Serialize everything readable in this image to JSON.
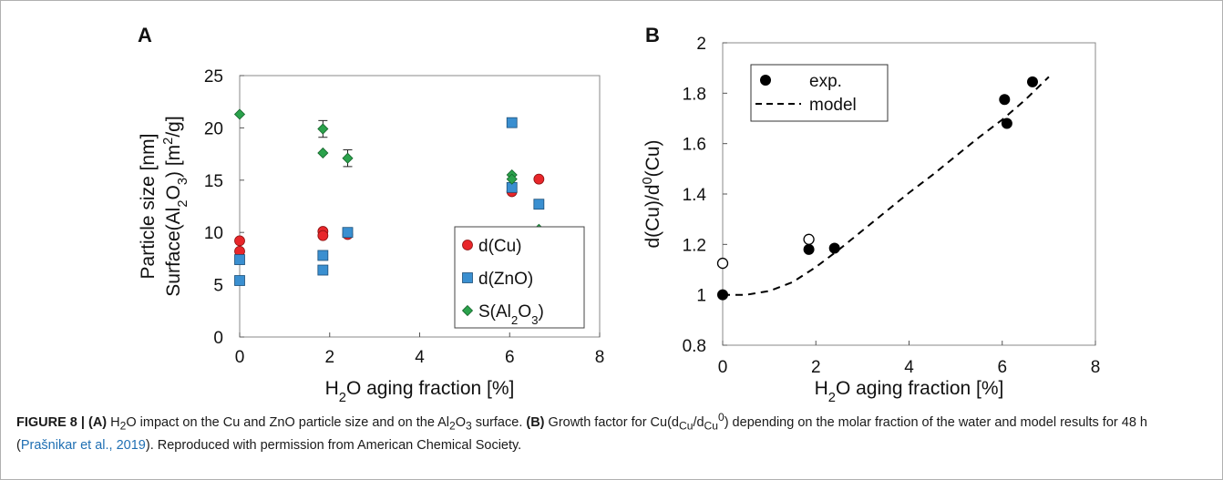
{
  "chart_data": [
    {
      "panel": "A",
      "type": "scatter",
      "xlabel": "H2O aging fraction [%]",
      "ylabel": [
        "Particle size [nm]",
        "Surface(Al2O3) [m2/g]"
      ],
      "xlim": [
        0,
        8
      ],
      "ylim": [
        0,
        25
      ],
      "xticks": [
        0,
        2,
        4,
        6,
        8
      ],
      "yticks": [
        0,
        5,
        10,
        15,
        20,
        25
      ],
      "legend_position": "bottom-right",
      "series": [
        {
          "name": "d(Cu)",
          "marker": "circle",
          "color": "#e8262a",
          "points": [
            [
              0,
              9.2
            ],
            [
              0,
              8.2
            ],
            [
              1.85,
              10.1
            ],
            [
              1.85,
              9.7
            ],
            [
              2.4,
              9.8
            ],
            [
              6.05,
              13.9
            ],
            [
              6.65,
              15.1
            ]
          ]
        },
        {
          "name": "d(ZnO)",
          "marker": "square",
          "color": "#3a8fd0",
          "points": [
            [
              0,
              7.4
            ],
            [
              0,
              5.4
            ],
            [
              1.85,
              7.8
            ],
            [
              1.85,
              6.4
            ],
            [
              2.4,
              10.0
            ],
            [
              6.05,
              20.5
            ],
            [
              6.05,
              14.3
            ],
            [
              6.65,
              12.7
            ]
          ]
        },
        {
          "name": "S(Al2O3)",
          "marker": "diamond",
          "color": "#2ba24c",
          "points": [
            [
              0,
              21.3
            ],
            [
              1.85,
              19.9
            ],
            [
              1.85,
              17.6
            ],
            [
              2.4,
              17.1
            ],
            [
              6.05,
              15.5
            ],
            [
              6.05,
              15.1
            ],
            [
              6.65,
              10.3
            ]
          ],
          "errors": [
            0,
            0.8,
            0,
            0.8,
            0,
            0,
            0
          ]
        }
      ]
    },
    {
      "panel": "B",
      "type": "scatter",
      "xlabel": "H2O aging fraction [%]",
      "ylabel": "d(Cu)/d0(Cu)",
      "xlim": [
        0,
        8
      ],
      "ylim": [
        0.8,
        2.0
      ],
      "xticks": [
        0,
        2,
        4,
        6,
        8
      ],
      "yticks": [
        0.8,
        1,
        1.2,
        1.4,
        1.6,
        1.8,
        2
      ],
      "ytick_labels": [
        "0.8",
        "1",
        "1.2",
        "1.4",
        "1.6",
        "1.8",
        "2"
      ],
      "legend_position": "top-left",
      "series": [
        {
          "name": "exp.",
          "marker": "filled-circle",
          "color": "#000000",
          "points": [
            [
              0,
              1.0
            ],
            [
              1.85,
              1.18
            ],
            [
              2.4,
              1.185
            ],
            [
              6.05,
              1.775
            ],
            [
              6.1,
              1.68
            ],
            [
              6.65,
              1.845
            ]
          ]
        },
        {
          "name": "",
          "marker": "open-circle",
          "color": "#000000",
          "points": [
            [
              0,
              1.125
            ],
            [
              1.85,
              1.22
            ]
          ]
        },
        {
          "name": "model",
          "style": "dashed",
          "color": "#000000",
          "points": [
            [
              0,
              1.0
            ],
            [
              0.5,
              1.0
            ],
            [
              1.0,
              1.015
            ],
            [
              1.5,
              1.05
            ],
            [
              2.0,
              1.11
            ],
            [
              2.5,
              1.18
            ],
            [
              3.0,
              1.255
            ],
            [
              3.5,
              1.33
            ],
            [
              4.0,
              1.405
            ],
            [
              4.5,
              1.475
            ],
            [
              5.0,
              1.55
            ],
            [
              5.5,
              1.625
            ],
            [
              6.0,
              1.695
            ],
            [
              6.5,
              1.775
            ],
            [
              7.0,
              1.865
            ]
          ]
        }
      ]
    }
  ],
  "caption": {
    "figure_label": "FIGURE 8 | ",
    "a_label": "(A)",
    "a_text_1": " H",
    "a_sub_2": "2",
    "a_text_2": "O impact on the Cu and ZnO particle size and on the Al",
    "a_sub_3": "2",
    "a_text_3": "O",
    "a_sub_4": "3",
    "a_text_4": " surface. ",
    "b_label": "(B)",
    "b_text_1": " Growth factor for Cu(d",
    "b_sub_cu1": "Cu",
    "b_text_2": "/d",
    "b_sub_cu2": "Cu",
    "b_sup_0": "0",
    "b_text_3": ") depending on the molar fraction of the water and model results for 48 h (",
    "ref": "Prašnikar et al., 2019",
    "b_text_4": "). Reproduced with permission from American Chemical Society."
  }
}
